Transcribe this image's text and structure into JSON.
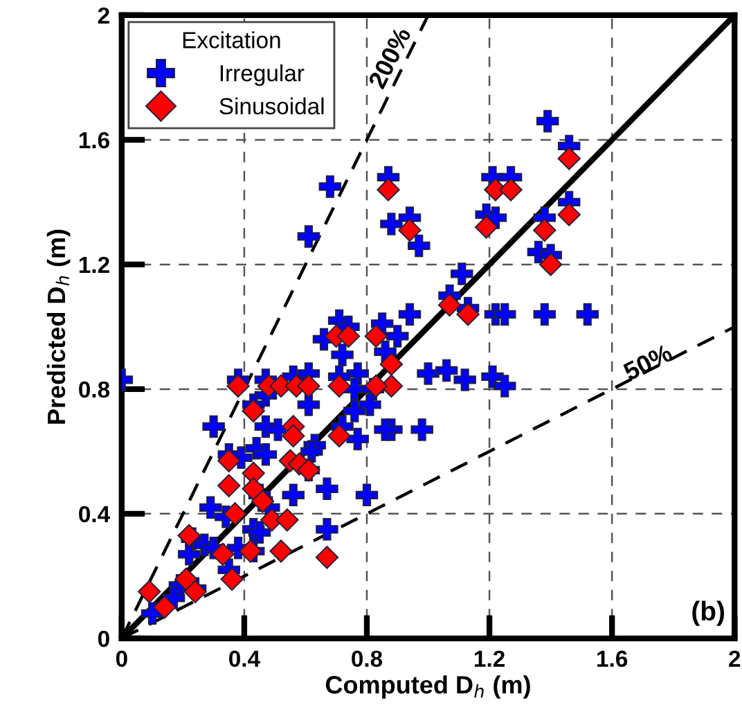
{
  "chart_data": {
    "type": "scatter",
    "xlabel": "Computed D$_{h}$ (m)",
    "ylabel": "Predicted D$_{h}$ (m)",
    "legend_title": "Excitation",
    "legend": "top left",
    "grid": true,
    "xlim": [
      0,
      2
    ],
    "ylim": [
      0,
      2
    ],
    "xticks": [
      0,
      0.4,
      0.8,
      1.2,
      1.6,
      2
    ],
    "yticks": [
      0,
      0.4,
      0.8,
      1.2,
      1.6,
      2
    ],
    "annotations": [
      "200%",
      "50%",
      "(b)"
    ],
    "series": [
      {
        "type": "line",
        "color": "#000000",
        "line_style": "solid",
        "marker": "none",
        "x": [
          0,
          2
        ],
        "values": [
          0,
          2
        ]
      },
      {
        "type": "line",
        "color": "#000000",
        "line_style": "dashed",
        "marker": "none",
        "x": [
          0,
          1
        ],
        "values": [
          0,
          2
        ]
      },
      {
        "type": "line",
        "color": "#000000",
        "line_style": "dashed",
        "marker": "none",
        "x": [
          0,
          2
        ],
        "values": [
          0,
          1
        ]
      },
      {
        "name": "Irregular",
        "color": "#0000ff",
        "marker": "cross",
        "x": [
          0.87,
          0.68,
          0.88,
          0.94,
          0.97,
          0.61,
          1.07,
          0.94,
          1.11,
          1.39,
          1.46,
          1.21,
          1.27,
          1.19,
          1.22,
          1.38,
          1.46,
          1.36,
          1.4,
          1.13,
          1.22,
          1.25,
          1.38,
          1.52,
          1.0,
          1.06,
          1.12,
          1.21,
          1.25,
          0.98,
          0.88,
          0.9,
          0.0,
          0.71,
          0.74,
          0.85,
          0.66,
          0.72,
          0.86,
          0.77,
          0.38,
          0.47,
          0.56,
          0.61,
          0.71,
          0.76,
          0.82,
          0.47,
          0.43,
          0.61,
          0.3,
          0.47,
          0.51,
          0.76,
          0.81,
          0.86,
          0.72,
          0.77,
          0.63,
          0.62,
          0.44,
          0.47,
          0.39,
          0.35,
          0.61,
          0.56,
          0.67,
          0.8,
          0.45,
          0.48,
          0.29,
          0.34,
          0.43,
          0.45,
          0.67,
          0.23,
          0.27,
          0.22,
          0.3,
          0.38,
          0.43,
          0.35,
          0.19,
          0.24,
          0.17,
          0.1
        ],
        "values": [
          1.48,
          1.45,
          1.33,
          1.35,
          1.26,
          1.29,
          1.1,
          1.04,
          1.17,
          1.66,
          1.58,
          1.48,
          1.48,
          1.36,
          1.35,
          1.35,
          1.4,
          1.24,
          1.23,
          1.06,
          1.04,
          1.04,
          1.04,
          1.04,
          0.85,
          0.86,
          0.83,
          0.84,
          0.81,
          0.67,
          0.67,
          0.97,
          0.83,
          1.02,
          1.0,
          1.01,
          0.96,
          0.91,
          0.92,
          0.85,
          0.83,
          0.83,
          0.84,
          0.85,
          0.84,
          0.8,
          0.8,
          0.78,
          0.75,
          0.75,
          0.68,
          0.68,
          0.67,
          0.73,
          0.75,
          0.67,
          0.68,
          0.64,
          0.62,
          0.6,
          0.61,
          0.59,
          0.58,
          0.59,
          0.54,
          0.46,
          0.48,
          0.46,
          0.46,
          0.42,
          0.42,
          0.39,
          0.35,
          0.34,
          0.35,
          0.32,
          0.3,
          0.27,
          0.29,
          0.29,
          0.28,
          0.22,
          0.17,
          0.16,
          0.13,
          0.08
        ]
      },
      {
        "name": "Sinusoidal",
        "color": "#ff0000",
        "marker": "diamond",
        "x": [
          0.87,
          0.94,
          1.07,
          1.22,
          1.27,
          1.46,
          1.19,
          1.38,
          1.46,
          1.4,
          1.13,
          0.88,
          0.88,
          0.7,
          0.74,
          0.83,
          0.38,
          0.48,
          0.52,
          0.57,
          0.61,
          0.71,
          0.83,
          0.43,
          0.56,
          0.56,
          0.71,
          0.35,
          0.43,
          0.55,
          0.58,
          0.61,
          0.35,
          0.43,
          0.46,
          0.37,
          0.49,
          0.54,
          0.22,
          0.33,
          0.42,
          0.52,
          0.67,
          0.36,
          0.21,
          0.24,
          0.09,
          0.14
        ],
        "values": [
          1.44,
          1.31,
          1.07,
          1.44,
          1.44,
          1.54,
          1.32,
          1.31,
          1.36,
          1.2,
          1.04,
          0.81,
          0.88,
          0.97,
          0.97,
          0.97,
          0.81,
          0.81,
          0.81,
          0.81,
          0.81,
          0.81,
          0.81,
          0.73,
          0.68,
          0.65,
          0.65,
          0.57,
          0.53,
          0.57,
          0.56,
          0.54,
          0.49,
          0.48,
          0.44,
          0.4,
          0.38,
          0.38,
          0.33,
          0.27,
          0.28,
          0.28,
          0.26,
          0.19,
          0.19,
          0.15,
          0.15,
          0.1
        ]
      }
    ]
  }
}
